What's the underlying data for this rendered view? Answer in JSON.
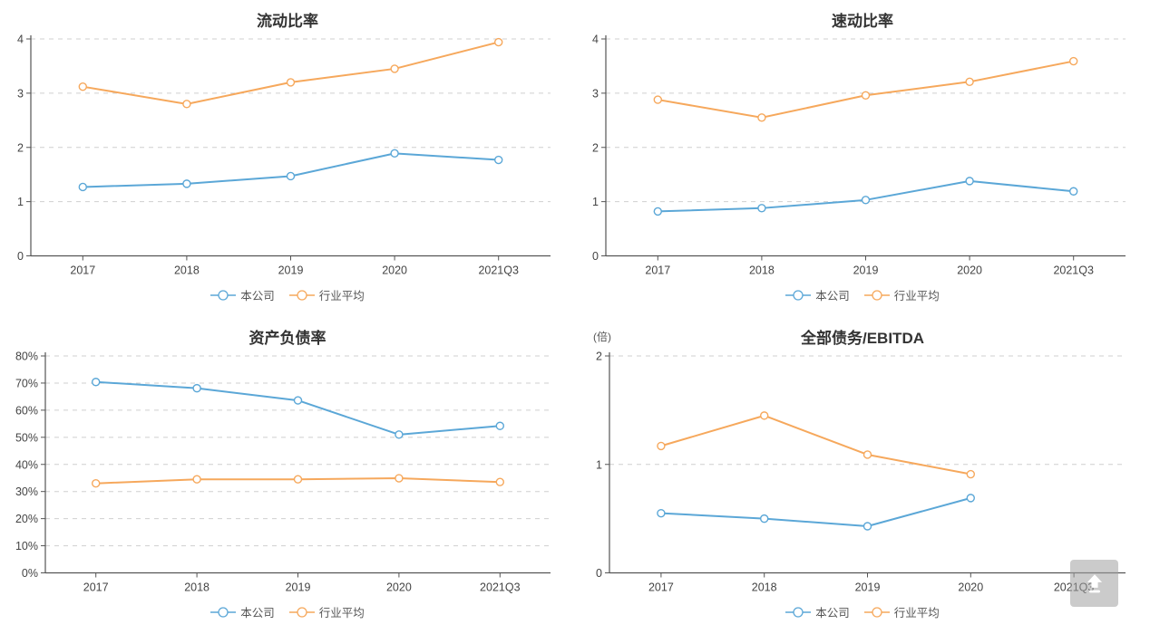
{
  "page": {
    "background": "#ffffff"
  },
  "colors": {
    "company": "#5BA7D7",
    "industry": "#F6A85C",
    "grid": "#cfcfcf",
    "axis": "#555555",
    "tick_text": "#444444",
    "title_text": "#333333",
    "backtop_bg": "rgba(160,160,160,0.55)"
  },
  "back_to_top": {
    "icon": "arrow-up-icon"
  },
  "chart_data": [
    {
      "type": "line",
      "title": "流动比率",
      "unit": "",
      "categories": [
        "2017",
        "2018",
        "2019",
        "2020",
        "2021Q3"
      ],
      "ylim": [
        0,
        4
      ],
      "yticks": [
        0,
        1,
        2,
        3,
        4
      ],
      "ytick_labels": [
        "0",
        "1",
        "2",
        "3",
        "4"
      ],
      "grid": "dashed",
      "legend_position": "bottom",
      "series": [
        {
          "name": "本公司",
          "color": "#5BA7D7",
          "values": [
            1.27,
            1.33,
            1.47,
            1.89,
            1.77
          ]
        },
        {
          "name": "行业平均",
          "color": "#F6A85C",
          "values": [
            3.12,
            2.8,
            3.2,
            3.45,
            3.94
          ]
        }
      ]
    },
    {
      "type": "line",
      "title": "速动比率",
      "unit": "",
      "categories": [
        "2017",
        "2018",
        "2019",
        "2020",
        "2021Q3"
      ],
      "ylim": [
        0,
        4
      ],
      "yticks": [
        0,
        1,
        2,
        3,
        4
      ],
      "ytick_labels": [
        "0",
        "1",
        "2",
        "3",
        "4"
      ],
      "grid": "dashed",
      "legend_position": "bottom",
      "series": [
        {
          "name": "本公司",
          "color": "#5BA7D7",
          "values": [
            0.82,
            0.88,
            1.03,
            1.38,
            1.19
          ]
        },
        {
          "name": "行业平均",
          "color": "#F6A85C",
          "values": [
            2.88,
            2.55,
            2.96,
            3.21,
            3.59
          ]
        }
      ]
    },
    {
      "type": "line",
      "title": "资产负债率",
      "unit": "",
      "categories": [
        "2017",
        "2018",
        "2019",
        "2020",
        "2021Q3"
      ],
      "ylim": [
        0,
        80
      ],
      "yticks": [
        0,
        10,
        20,
        30,
        40,
        50,
        60,
        70,
        80
      ],
      "ytick_labels": [
        "0%",
        "10%",
        "20%",
        "30%",
        "40%",
        "50%",
        "60%",
        "70%",
        "80%"
      ],
      "grid": "dashed",
      "legend_position": "bottom",
      "series": [
        {
          "name": "本公司",
          "color": "#5BA7D7",
          "values": [
            70.4,
            68.1,
            63.6,
            51.0,
            54.2
          ]
        },
        {
          "name": "行业平均",
          "color": "#F6A85C",
          "values": [
            33.0,
            34.5,
            34.5,
            34.9,
            33.5
          ]
        }
      ]
    },
    {
      "type": "line",
      "title": "全部债务/EBITDA",
      "unit": "(倍)",
      "categories": [
        "2017",
        "2018",
        "2019",
        "2020",
        "2021Q3"
      ],
      "ylim": [
        0,
        2
      ],
      "yticks": [
        0,
        1,
        2
      ],
      "ytick_labels": [
        "0",
        "1",
        "2"
      ],
      "grid": "dashed",
      "legend_position": "bottom",
      "series": [
        {
          "name": "本公司",
          "color": "#5BA7D7",
          "values": [
            0.55,
            0.5,
            0.43,
            0.69,
            null
          ]
        },
        {
          "name": "行业平均",
          "color": "#F6A85C",
          "values": [
            1.17,
            1.45,
            1.09,
            0.91,
            null
          ]
        }
      ]
    }
  ]
}
